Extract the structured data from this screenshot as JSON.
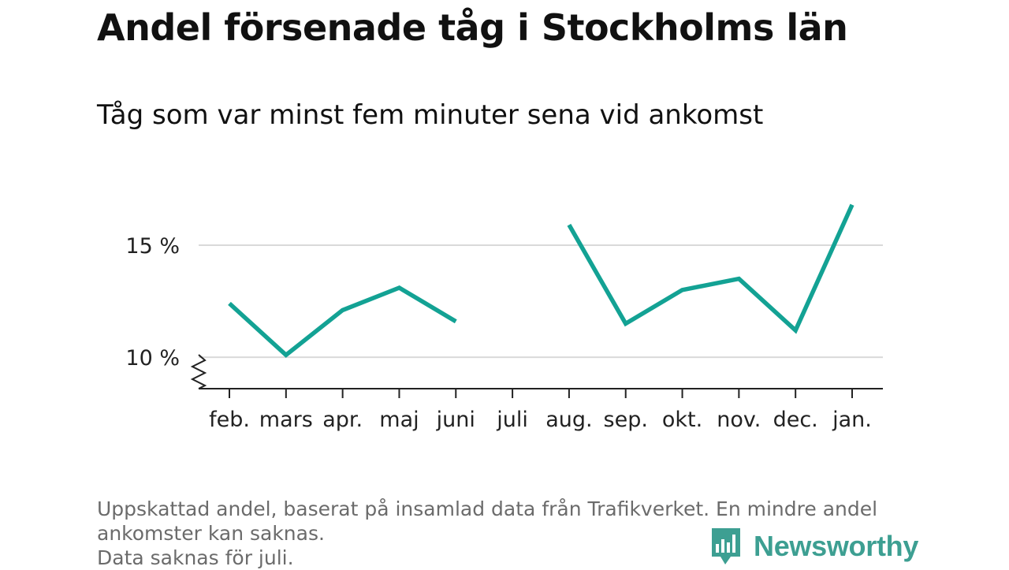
{
  "title": "Andel försenade tåg i Stockholms län",
  "subtitle": "Tåg som var minst fem minuter sena vid ankomst",
  "footnote": {
    "line1": "Uppskattad andel, baserat på insamlad data från Trafikverket. En mindre andel",
    "line2": "ankomster kan saknas.",
    "line3": "Data saknas för juli."
  },
  "brand": {
    "name": "Newsworthy",
    "icon": "newsworthy-logo-icon",
    "color": "#3d9f92"
  },
  "chart_data": {
    "type": "line",
    "categories": [
      "feb.",
      "mars",
      "apr.",
      "maj",
      "juni",
      "juli",
      "aug.",
      "sep.",
      "okt.",
      "nov.",
      "dec.",
      "jan."
    ],
    "series": [
      {
        "values": [
          12.4,
          10.1,
          12.1,
          13.1,
          11.6,
          null,
          15.9,
          11.5,
          13.0,
          13.5,
          11.2,
          16.8
        ],
        "color": "#13a294"
      }
    ],
    "yticks": [
      10,
      15
    ],
    "ytick_labels": [
      "10 %",
      "15 %"
    ],
    "ylim": [
      8.6,
      18.9
    ],
    "axis_break": true,
    "grid": true,
    "xlabel": "",
    "ylabel": ""
  }
}
